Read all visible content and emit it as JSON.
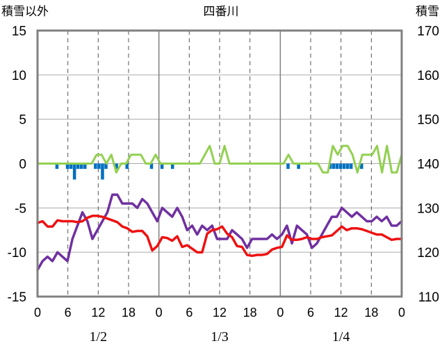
{
  "chart_data": {
    "type": "line",
    "title": "四番川",
    "left_axis_label": "積雪以外",
    "right_axis_label": "積雪",
    "left_ylim": [
      -15,
      15
    ],
    "left_yticks": [
      "15",
      "10",
      "5",
      "0",
      "-5",
      "-10",
      "-15"
    ],
    "right_ylim": [
      110,
      170
    ],
    "right_yticks": [
      "170",
      "160",
      "150",
      "140",
      "130",
      "120",
      "110"
    ],
    "x_hour_labels": [
      "0",
      "6",
      "12",
      "18",
      "0",
      "6",
      "12",
      "18",
      "0",
      "6",
      "12",
      "18",
      "0"
    ],
    "day_labels": [
      "1/2",
      "1/3",
      "1/4"
    ],
    "grid": "dashed",
    "colors": {
      "red": "#ee1111",
      "purple": "#7030a0",
      "green": "#92d050",
      "blue": "#0070c0",
      "frame": "#808080",
      "grid": "#555555"
    },
    "series": [
      {
        "axis": "left",
        "color": "purple",
        "values": [
          -12.0,
          -11.0,
          -10.5,
          -11.0,
          -10.0,
          -10.5,
          -11.0,
          -8.5,
          -7.0,
          -5.5,
          -6.5,
          -8.5,
          -7.5,
          -6.5,
          -5.5,
          -3.5,
          -3.5,
          -4.5,
          -4.5,
          -4.5,
          -5.0,
          -4.0,
          -4.5,
          -5.5,
          -6.5,
          -5.0,
          -5.5,
          -6.0,
          -5.0,
          -6.0,
          -7.5,
          -7.0,
          -8.0,
          -7.0,
          -7.5,
          -7.0,
          -8.5,
          -8.5,
          -8.5,
          -7.5,
          -8.0,
          -8.5,
          -9.5,
          -8.5,
          -8.5,
          -8.5,
          -8.5,
          -8.0,
          -8.5,
          -8.0,
          -7.0,
          -9.0,
          -7.0,
          -7.5,
          -8.0,
          -9.5,
          -9.0,
          -8.0,
          -7.0,
          -6.0,
          -6.0,
          -5.0,
          -5.5,
          -6.0,
          -5.5,
          -6.0,
          -6.5,
          -6.5,
          -6.0,
          -6.5,
          -6.0,
          -7.0,
          -7.0,
          -6.5
        ]
      },
      {
        "axis": "left",
        "color": "red",
        "values": [
          -6.7,
          -6.5,
          -7.1,
          -7.1,
          -6.4,
          -6.5,
          -6.5,
          -6.5,
          -6.6,
          -6.5,
          -6.1,
          -5.9,
          -5.9,
          -6.0,
          -6.2,
          -6.4,
          -6.6,
          -7.1,
          -7.3,
          -7.7,
          -7.6,
          -7.6,
          -8.2,
          -9.8,
          -9.3,
          -8.3,
          -8.4,
          -8.7,
          -8.2,
          -9.4,
          -9.2,
          -9.6,
          -10.0,
          -10.0,
          -7.9,
          -7.5,
          -7.4,
          -7.1,
          -7.9,
          -8.3,
          -9.3,
          -9.4,
          -10.3,
          -10.4,
          -10.3,
          -10.3,
          -10.2,
          -9.7,
          -9.5,
          -9.4,
          -8.1,
          -8.6,
          -8.6,
          -8.5,
          -8.3,
          -8.5,
          -8.5,
          -8.3,
          -8.2,
          -8.1,
          -7.6,
          -7.1,
          -7.5,
          -7.3,
          -7.3,
          -7.4,
          -7.6,
          -7.8,
          -8.0,
          -8.0,
          -8.3,
          -8.6,
          -8.5,
          -8.5
        ]
      },
      {
        "axis": "left",
        "color": "green",
        "values": [
          0,
          0,
          0,
          0,
          0,
          0,
          0,
          0,
          0,
          0,
          0,
          0,
          1,
          1,
          0,
          1,
          -1,
          0,
          0,
          1,
          1,
          1,
          0,
          0,
          1,
          0,
          0,
          0,
          0,
          0,
          0,
          0,
          0,
          0,
          1,
          2,
          0,
          0,
          2,
          0,
          0,
          0,
          0,
          0,
          0,
          0,
          0,
          0,
          0,
          0,
          0,
          1,
          0,
          0,
          0,
          0,
          0,
          0,
          -1,
          -1,
          2,
          1,
          2,
          2,
          1,
          -1,
          1,
          1,
          1,
          2,
          -1,
          2,
          -1,
          -1,
          1
        ]
      }
    ],
    "bars": {
      "axis": "left",
      "color": "blue",
      "values": [
        0,
        0,
        0,
        0,
        0,
        -0.6,
        0,
        0,
        -0.6,
        -0.6,
        -1.8,
        -0.6,
        -0.6,
        -0.6,
        0,
        0,
        -0.6,
        -0.6,
        -1.8,
        -0.6,
        0,
        0,
        -0.6,
        0,
        0,
        -0.6,
        0,
        0,
        0,
        0,
        0,
        0,
        -0.6,
        0,
        0,
        -0.6,
        0,
        0,
        -0.6,
        0,
        0,
        0,
        0,
        0,
        0,
        0,
        0,
        0,
        0,
        0,
        0,
        0,
        0,
        0,
        0,
        0,
        0,
        0,
        0,
        0,
        0,
        0,
        0,
        0,
        0,
        0,
        0,
        0,
        0,
        0,
        0,
        -0.6,
        0,
        0,
        -0.6,
        0,
        0,
        0,
        0,
        0,
        0,
        0,
        0,
        -0.6,
        -0.6,
        -0.6,
        -0.6,
        -0.6,
        -0.6,
        -0.6,
        0,
        0,
        -0.6,
        0,
        0,
        0,
        0,
        0,
        0,
        0,
        0,
        0,
        0,
        0
      ]
    }
  }
}
